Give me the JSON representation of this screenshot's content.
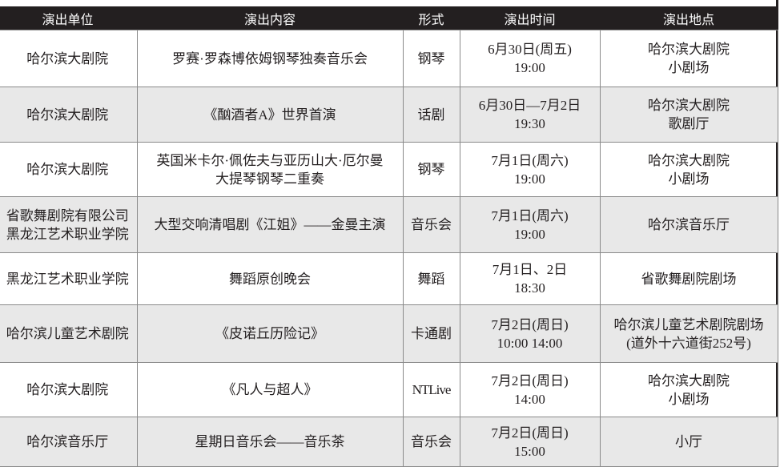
{
  "headers": [
    "演出单位",
    "演出内容",
    "形式",
    "演出时间",
    "演出地点"
  ],
  "rows": [
    {
      "unit": [
        "哈尔滨大剧院"
      ],
      "content": [
        "罗赛·罗森博依姆钢琴独奏音乐会"
      ],
      "form": "钢琴",
      "time": [
        "6月30日(周五)",
        "19:00"
      ],
      "venue": [
        "哈尔滨大剧院",
        "小剧场"
      ]
    },
    {
      "unit": [
        "哈尔滨大剧院"
      ],
      "content": [
        "《酗酒者A》世界首演"
      ],
      "form": "话剧",
      "time": [
        "6月30日—7月2日",
        "19:30"
      ],
      "venue": [
        "哈尔滨大剧院",
        "歌剧厅"
      ]
    },
    {
      "unit": [
        "哈尔滨大剧院"
      ],
      "content": [
        "英国米卡尔·佩佐夫与亚历山大·厄尔曼",
        "大提琴钢琴二重奏"
      ],
      "form": "钢琴",
      "time": [
        "7月1日(周六)",
        "19:00"
      ],
      "venue": [
        "哈尔滨大剧院",
        "小剧场"
      ]
    },
    {
      "unit": [
        "省歌舞剧院有限公司",
        "黑龙江艺术职业学院"
      ],
      "content": [
        "大型交响清唱剧《江姐》——金曼主演"
      ],
      "form": "音乐会",
      "time": [
        "7月1日(周六)",
        "19:00"
      ],
      "venue": [
        "哈尔滨音乐厅"
      ]
    },
    {
      "unit": [
        "黑龙江艺术职业学院"
      ],
      "content": [
        "舞蹈原创晚会"
      ],
      "form": "舞蹈",
      "time": [
        "7月1日、2日",
        "18:30"
      ],
      "venue": [
        "省歌舞剧院剧场"
      ]
    },
    {
      "unit": [
        "哈尔滨儿童艺术剧院"
      ],
      "content": [
        "《皮诺丘历险记》"
      ],
      "form": "卡通剧",
      "time": [
        "7月2日(周日)",
        "10:00  14:00"
      ],
      "venue": [
        "哈尔滨儿童艺术剧院剧场",
        "(道外十六道街252号)"
      ]
    },
    {
      "unit": [
        "哈尔滨大剧院"
      ],
      "content": [
        "《凡人与超人》"
      ],
      "form": "NTLive",
      "time": [
        "7月2日(周日)",
        "14:00"
      ],
      "venue": [
        "哈尔滨大剧院",
        "小剧场"
      ]
    },
    {
      "unit": [
        "哈尔滨音乐厅"
      ],
      "content": [
        "星期日音乐会——音乐茶"
      ],
      "form": "音乐会",
      "time": [
        "7月2日(周日)",
        "15:00"
      ],
      "venue": [
        "小厅"
      ]
    }
  ],
  "colors": {
    "header_bg": "#231f20",
    "header_text": "#ffffff",
    "alt_row_bg": "#e8e8e8",
    "border": "#8a8a8a"
  }
}
